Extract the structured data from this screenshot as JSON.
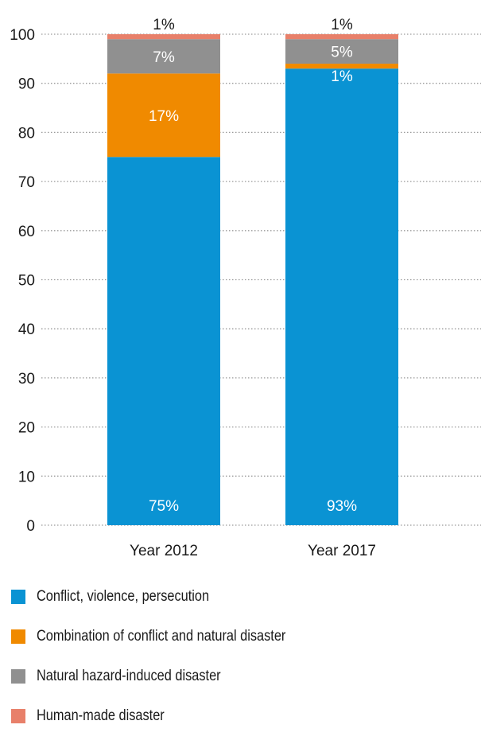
{
  "chart_data": {
    "type": "stacked-bar",
    "title": "",
    "xlabel": "",
    "ylabel": "",
    "ylim": [
      0,
      100
    ],
    "yticks": [
      0,
      10,
      20,
      30,
      40,
      50,
      60,
      70,
      80,
      90,
      100
    ],
    "grid": "horizontal-dotted",
    "legend_position": "bottom",
    "categories": [
      "Year 2012",
      "Year 2017"
    ],
    "series": [
      {
        "name": "Conflict, violence, persecution",
        "color": "#0a93d3",
        "values": [
          75,
          93
        ],
        "labels": [
          "75%",
          "93%"
        ],
        "label_color": "#ffffff"
      },
      {
        "name": "Combination of conflict and natural disaster",
        "color": "#f08a00",
        "values": [
          17,
          1
        ],
        "labels": [
          "17%",
          "1%"
        ],
        "label_color": "#ffffff"
      },
      {
        "name": "Natural hazard-induced disaster",
        "color": "#909090",
        "values": [
          7,
          5
        ],
        "labels": [
          "7%",
          "5%"
        ],
        "label_color": "#ffffff"
      },
      {
        "name": "Human-made disaster",
        "color": "#e8806a",
        "values": [
          1,
          1
        ],
        "labels": [
          "1%",
          "1%"
        ],
        "label_color": "#1a1a1a"
      }
    ]
  }
}
